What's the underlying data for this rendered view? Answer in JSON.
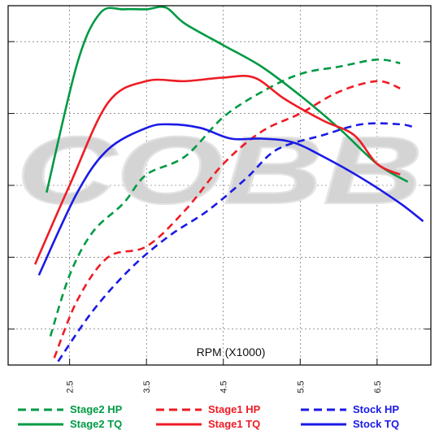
{
  "chart_data": {
    "type": "line",
    "xlabel": "RPM (X1000)",
    "xlim": [
      1.7,
      7.2
    ],
    "ylim": [
      0,
      10
    ],
    "x_ticks": [
      2.5,
      3.5,
      4.5,
      5.5,
      6.5
    ],
    "x_tick_labels": [
      "2.5",
      "3.5",
      "4.5",
      "5.5",
      "6.5"
    ],
    "y_grid": [
      1,
      3,
      5,
      7,
      9
    ],
    "grid": true,
    "legend_position": "bottom",
    "watermark": "COBB",
    "series": [
      {
        "name": "Stage2 HP",
        "color": "#009a44",
        "dash": true,
        "points": [
          [
            2.25,
            0.8
          ],
          [
            2.5,
            2.5
          ],
          [
            2.8,
            3.7
          ],
          [
            3.2,
            4.5
          ],
          [
            3.5,
            5.3
          ],
          [
            4.0,
            5.8
          ],
          [
            4.5,
            6.9
          ],
          [
            5.0,
            7.6
          ],
          [
            5.5,
            8.1
          ],
          [
            6.0,
            8.3
          ],
          [
            6.5,
            8.5
          ],
          [
            6.8,
            8.4
          ]
        ]
      },
      {
        "name": "Stage2 TQ",
        "color": "#009a44",
        "dash": false,
        "points": [
          [
            2.2,
            4.8
          ],
          [
            2.6,
            8.4
          ],
          [
            2.9,
            9.8
          ],
          [
            3.2,
            9.9
          ],
          [
            3.5,
            9.9
          ],
          [
            3.75,
            9.95
          ],
          [
            4.0,
            9.5
          ],
          [
            4.5,
            8.9
          ],
          [
            5.0,
            8.3
          ],
          [
            5.5,
            7.5
          ],
          [
            6.0,
            6.6
          ],
          [
            6.5,
            5.6
          ],
          [
            6.9,
            5.1
          ]
        ]
      },
      {
        "name": "Stage1 HP",
        "color": "#ee1c25",
        "dash": true,
        "points": [
          [
            2.3,
            0.2
          ],
          [
            2.6,
            1.8
          ],
          [
            3.0,
            3.0
          ],
          [
            3.5,
            3.3
          ],
          [
            4.0,
            4.3
          ],
          [
            4.5,
            5.6
          ],
          [
            5.0,
            6.5
          ],
          [
            5.5,
            7.0
          ],
          [
            6.0,
            7.6
          ],
          [
            6.5,
            7.9
          ],
          [
            6.8,
            7.7
          ]
        ]
      },
      {
        "name": "Stage1 TQ",
        "color": "#ee1c25",
        "dash": false,
        "points": [
          [
            2.05,
            2.8
          ],
          [
            2.5,
            5.0
          ],
          [
            3.0,
            7.3
          ],
          [
            3.5,
            7.9
          ],
          [
            4.0,
            7.9
          ],
          [
            4.5,
            8.0
          ],
          [
            4.9,
            8.0
          ],
          [
            5.3,
            7.4
          ],
          [
            5.8,
            6.8
          ],
          [
            6.2,
            6.4
          ],
          [
            6.5,
            5.6
          ],
          [
            6.8,
            5.3
          ]
        ]
      },
      {
        "name": "Stock HP",
        "color": "#1a1ae6",
        "dash": true,
        "points": [
          [
            2.35,
            0.1
          ],
          [
            2.8,
            1.5
          ],
          [
            3.3,
            2.7
          ],
          [
            3.8,
            3.6
          ],
          [
            4.3,
            4.3
          ],
          [
            4.8,
            5.2
          ],
          [
            5.2,
            6.0
          ],
          [
            5.8,
            6.4
          ],
          [
            6.3,
            6.7
          ],
          [
            6.8,
            6.7
          ],
          [
            7.0,
            6.6
          ]
        ]
      },
      {
        "name": "Stock TQ",
        "color": "#1a1ae6",
        "dash": false,
        "points": [
          [
            2.1,
            2.5
          ],
          [
            2.6,
            4.8
          ],
          [
            3.0,
            6.0
          ],
          [
            3.5,
            6.6
          ],
          [
            3.8,
            6.7
          ],
          [
            4.2,
            6.6
          ],
          [
            4.6,
            6.3
          ],
          [
            5.0,
            6.3
          ],
          [
            5.4,
            6.2
          ],
          [
            5.8,
            5.8
          ],
          [
            6.3,
            5.2
          ],
          [
            6.8,
            4.5
          ],
          [
            7.1,
            4.0
          ]
        ]
      }
    ]
  }
}
